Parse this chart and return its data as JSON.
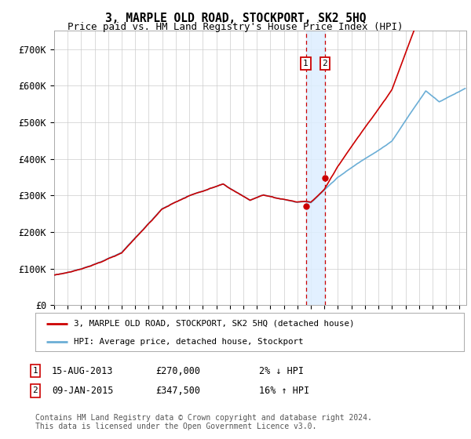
{
  "title": "3, MARPLE OLD ROAD, STOCKPORT, SK2 5HQ",
  "subtitle": "Price paid vs. HM Land Registry's House Price Index (HPI)",
  "ylabel_ticks": [
    "£0",
    "£100K",
    "£200K",
    "£300K",
    "£400K",
    "£500K",
    "£600K",
    "£700K"
  ],
  "ytick_vals": [
    0,
    100000,
    200000,
    300000,
    400000,
    500000,
    600000,
    700000
  ],
  "ylim": [
    0,
    750000
  ],
  "xlim_start": 1995.0,
  "xlim_end": 2025.5,
  "transaction1": {
    "date": 2013.62,
    "price": 270000,
    "label": "1"
  },
  "transaction2": {
    "date": 2015.03,
    "price": 347500,
    "label": "2"
  },
  "hpi_color": "#6baed6",
  "price_color": "#cc0000",
  "shade_color": "#ddeeff",
  "legend_line1": "3, MARPLE OLD ROAD, STOCKPORT, SK2 5HQ (detached house)",
  "legend_line2": "HPI: Average price, detached house, Stockport",
  "ann1_date": "15-AUG-2013",
  "ann1_price": "£270,000",
  "ann1_hpi": "2% ↓ HPI",
  "ann2_date": "09-JAN-2015",
  "ann2_price": "£347,500",
  "ann2_hpi": "16% ↑ HPI",
  "footnote": "Contains HM Land Registry data © Crown copyright and database right 2024.\nThis data is licensed under the Open Government Licence v3.0.",
  "background_color": "#ffffff",
  "grid_color": "#cccccc",
  "title_fontsize": 10.5,
  "subtitle_fontsize": 9
}
